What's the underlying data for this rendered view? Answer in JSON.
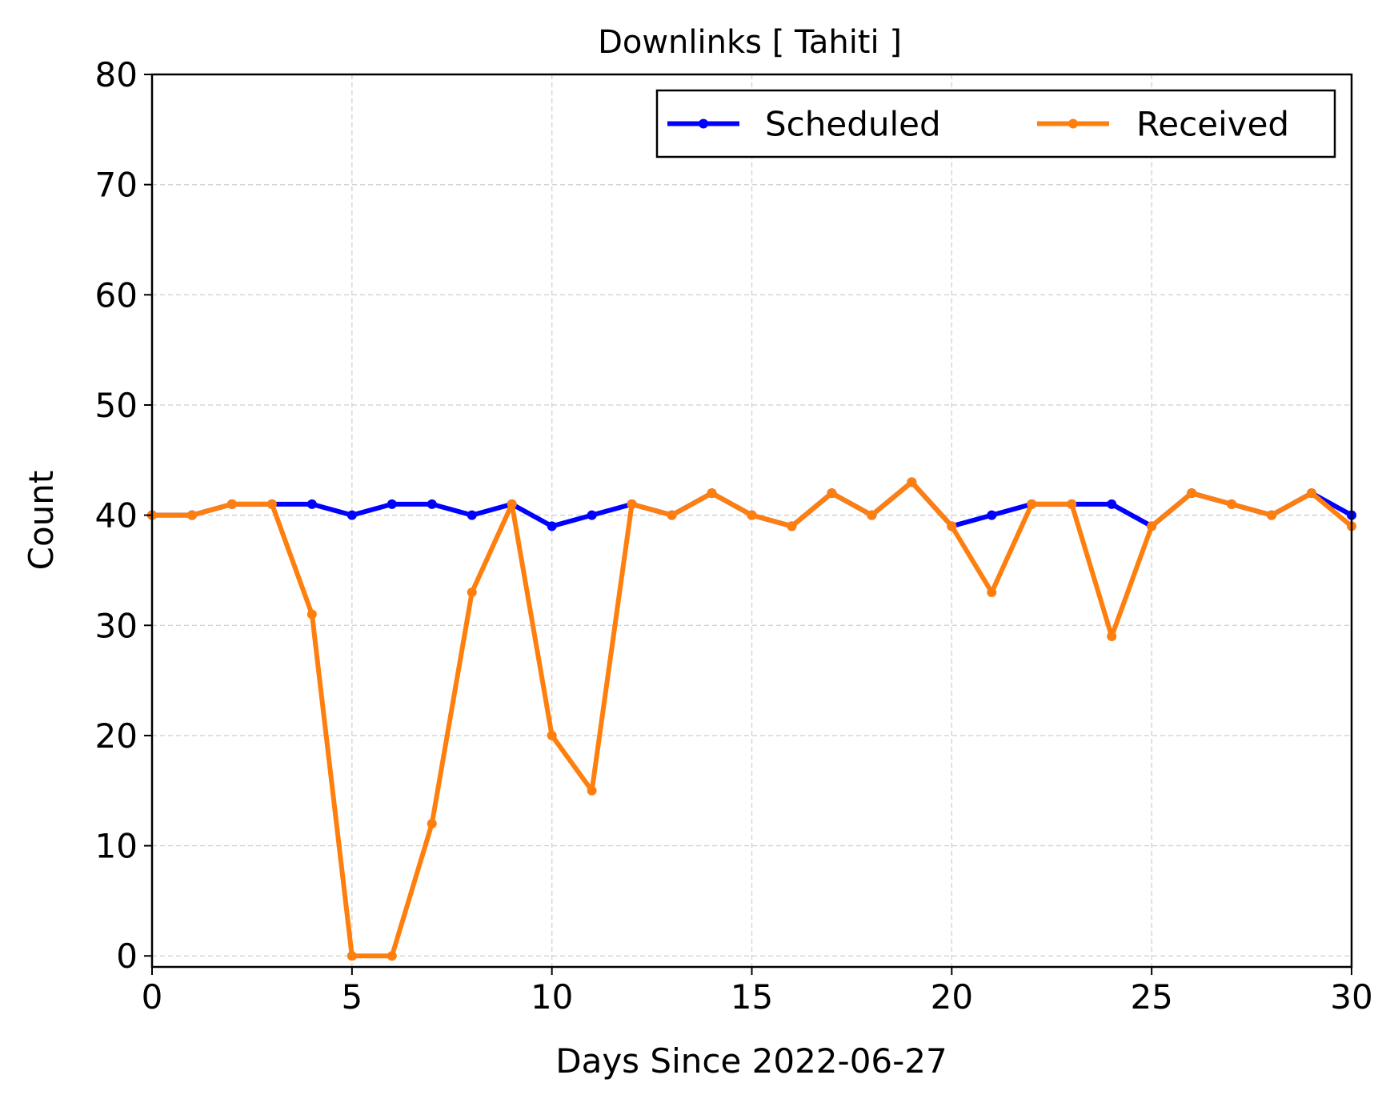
{
  "chart_data": {
    "type": "line",
    "title": "Downlinks [ Tahiti ]",
    "xlabel": "Days Since 2022-06-27",
    "ylabel": "Count",
    "xlim": [
      0,
      30
    ],
    "ylim": [
      -1,
      80
    ],
    "xticks": [
      0,
      5,
      10,
      15,
      20,
      25,
      30
    ],
    "yticks": [
      0,
      10,
      20,
      30,
      40,
      50,
      60,
      70,
      80
    ],
    "grid": true,
    "legend_position": "top-right",
    "x": [
      0,
      1,
      2,
      3,
      4,
      5,
      6,
      7,
      8,
      9,
      10,
      11,
      12,
      13,
      14,
      15,
      16,
      17,
      18,
      19,
      20,
      21,
      22,
      23,
      24,
      25,
      26,
      27,
      28,
      29,
      30
    ],
    "series": [
      {
        "name": "Scheduled",
        "color": "#0000ff",
        "values": [
          40,
          40,
          41,
          41,
          41,
          40,
          41,
          41,
          40,
          41,
          39,
          40,
          41,
          40,
          42,
          40,
          39,
          42,
          40,
          43,
          39,
          40,
          41,
          41,
          41,
          39,
          42,
          41,
          40,
          42,
          40
        ]
      },
      {
        "name": "Received",
        "color": "#ff7f0e",
        "values": [
          40,
          40,
          41,
          41,
          31,
          0,
          0,
          12,
          33,
          41,
          20,
          15,
          41,
          40,
          42,
          40,
          39,
          42,
          40,
          43,
          39,
          33,
          41,
          41,
          29,
          39,
          42,
          41,
          40,
          42,
          39
        ]
      }
    ]
  }
}
